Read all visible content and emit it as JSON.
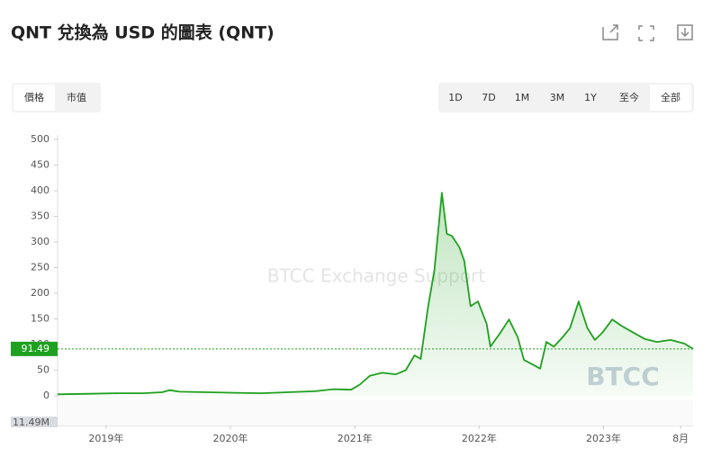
{
  "header": {
    "title": "QNT 兌換為 USD 的圖表 (QNT)"
  },
  "tabs": [
    "價格",
    "市值"
  ],
  "active_tab": 0,
  "ranges": [
    "1D",
    "7D",
    "1M",
    "3M",
    "1Y",
    "至今",
    "全部"
  ],
  "active_range": 6,
  "chart_data": {
    "type": "area",
    "color": "#1fa01f",
    "grid": false,
    "watermark": "BTCC Exchange Support",
    "logo": "BTCC",
    "last_price": 91.49,
    "volume_label": "11.49M",
    "xlim": [
      2018.61,
      2023.72
    ],
    "xticks": [
      {
        "value": 2019,
        "label": "2019年"
      },
      {
        "value": 2020,
        "label": "2020年"
      },
      {
        "value": 2021,
        "label": "2021年"
      },
      {
        "value": 2022,
        "label": "2022年"
      },
      {
        "value": 2023,
        "label": "2023年"
      },
      {
        "value": 2023.62,
        "label": "8月"
      }
    ],
    "ylim": [
      0,
      500
    ],
    "yticks": [
      0,
      50,
      100,
      150,
      200,
      250,
      300,
      350,
      400,
      450,
      500
    ],
    "x": [
      2018.61,
      2018.87,
      2019.09,
      2019.3,
      2019.45,
      2019.51,
      2019.59,
      2019.81,
      2020.03,
      2020.25,
      2020.46,
      2020.68,
      2020.83,
      2020.97,
      2021.04,
      2021.12,
      2021.22,
      2021.33,
      2021.41,
      2021.48,
      2021.53,
      2021.59,
      2021.64,
      2021.7,
      2021.74,
      2021.78,
      2021.84,
      2021.88,
      2021.93,
      2021.99,
      2022.06,
      2022.09,
      2022.17,
      2022.24,
      2022.31,
      2022.36,
      2022.43,
      2022.49,
      2022.54,
      2022.6,
      2022.67,
      2022.73,
      2022.8,
      2022.87,
      2022.93,
      2022.99,
      2023.07,
      2023.14,
      2023.22,
      2023.33,
      2023.43,
      2023.54,
      2023.65,
      2023.72
    ],
    "values": [
      3,
      4,
      5,
      5,
      7,
      11,
      8,
      7,
      6,
      5,
      7,
      9,
      13,
      12,
      22,
      39,
      45,
      42,
      50,
      79,
      72,
      175,
      245,
      396,
      316,
      312,
      290,
      263,
      175,
      184,
      140,
      96,
      123,
      149,
      114,
      70,
      61,
      53,
      105,
      96,
      114,
      132,
      184,
      132,
      109,
      123,
      149,
      137,
      126,
      111,
      105,
      109,
      102,
      91.49
    ]
  }
}
